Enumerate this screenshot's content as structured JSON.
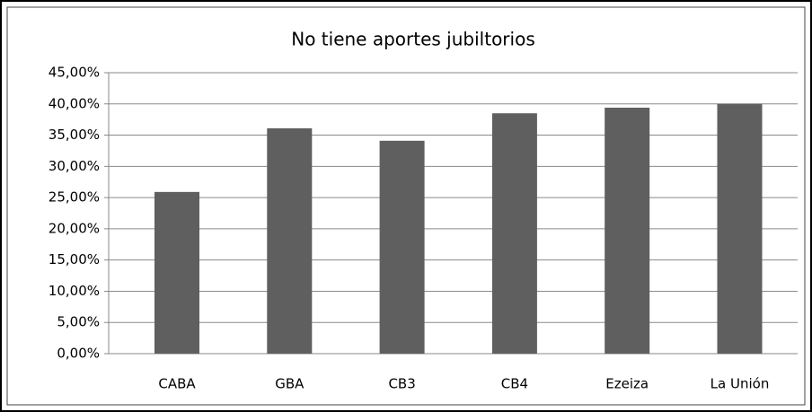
{
  "chart_data": {
    "type": "bar",
    "title": "No tiene aportes jubiltorios",
    "categories": [
      "CABA",
      "GBA",
      "CB3",
      "CB4",
      "Ezeiza",
      "La Unión"
    ],
    "values": [
      25.9,
      36.1,
      34.1,
      38.5,
      39.4,
      40.0
    ],
    "color": "#5f5f5f",
    "ylim": [
      0,
      45
    ],
    "yticks": [
      {
        "value": 0,
        "label": "0,00%"
      },
      {
        "value": 5,
        "label": "5,00%"
      },
      {
        "value": 10,
        "label": "10,00%"
      },
      {
        "value": 15,
        "label": "15,00%"
      },
      {
        "value": 20,
        "label": "20,00%"
      },
      {
        "value": 25,
        "label": "25,00%"
      },
      {
        "value": 30,
        "label": "30,00%"
      },
      {
        "value": 35,
        "label": "35,00%"
      },
      {
        "value": 40,
        "label": "40,00%"
      },
      {
        "value": 45,
        "label": "45,00%"
      }
    ],
    "grid": true
  }
}
